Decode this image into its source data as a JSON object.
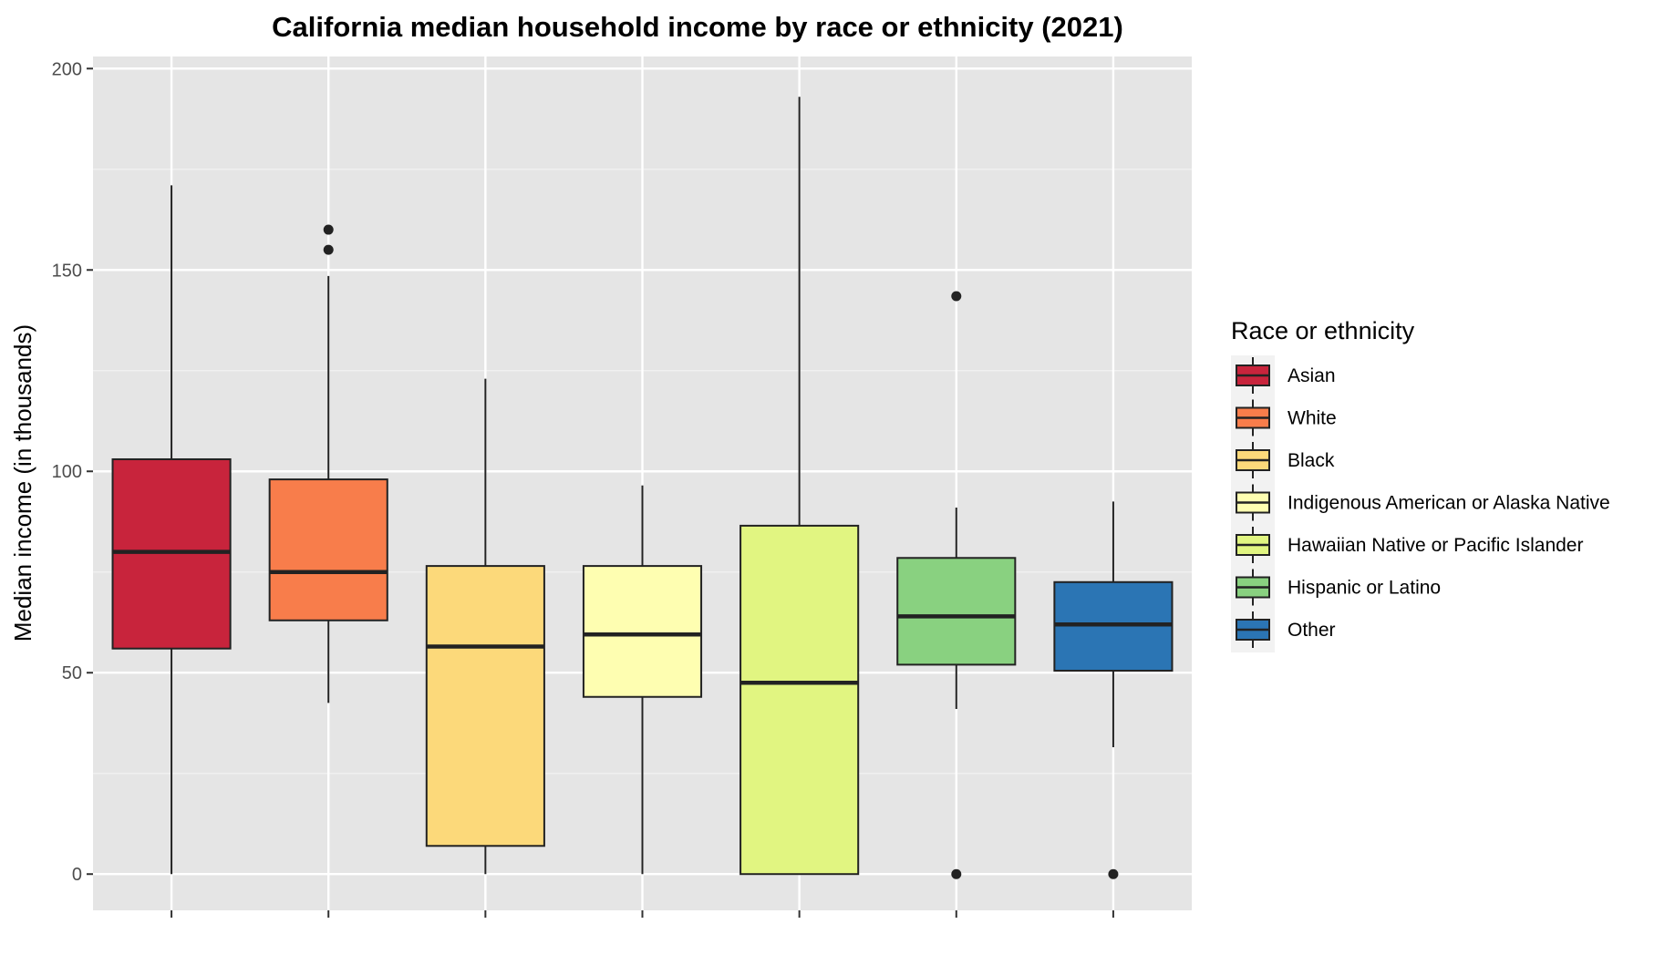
{
  "chart_data": {
    "type": "boxplot",
    "title": "California median household income by race or ethnicity (2021)",
    "xlabel": "",
    "ylabel": "Median income (in thousands)",
    "ylim": [
      -9,
      203
    ],
    "yticks": [
      0,
      50,
      100,
      150,
      200
    ],
    "grid": true,
    "legend": {
      "title": "Race or ethnicity",
      "position": "right"
    },
    "series": [
      {
        "name": "Asian",
        "color": "#C8243C",
        "whisker_low": 0,
        "q1": 56,
        "median": 80,
        "q3": 103,
        "whisker_high": 171,
        "outliers": []
      },
      {
        "name": "White",
        "color": "#F87D4B",
        "whisker_low": 42.5,
        "q1": 63,
        "median": 75,
        "q3": 98,
        "whisker_high": 148.5,
        "outliers": [
          155,
          160
        ]
      },
      {
        "name": "Black",
        "color": "#FCD97A",
        "whisker_low": 0,
        "q1": 7,
        "median": 56.5,
        "q3": 76.5,
        "whisker_high": 123,
        "outliers": []
      },
      {
        "name": "Indigenous American or Alaska Native",
        "color": "#FEFEB1",
        "whisker_low": 0,
        "q1": 44,
        "median": 59.5,
        "q3": 76.5,
        "whisker_high": 96.5,
        "outliers": []
      },
      {
        "name": "Hawaiian Native or Pacific Islander",
        "color": "#E1F581",
        "whisker_low": 0,
        "q1": 0,
        "median": 47.5,
        "q3": 86.5,
        "whisker_high": 193,
        "outliers": []
      },
      {
        "name": "Hispanic or Latino",
        "color": "#89D180",
        "whisker_low": 41,
        "q1": 52,
        "median": 64,
        "q3": 78.5,
        "whisker_high": 91,
        "outliers": [
          0,
          143.5
        ]
      },
      {
        "name": "Other",
        "color": "#2B75B4",
        "whisker_low": 31.5,
        "q1": 50.5,
        "median": 62,
        "q3": 72.5,
        "whisker_high": 92.5,
        "outliers": [
          0
        ]
      }
    ]
  }
}
